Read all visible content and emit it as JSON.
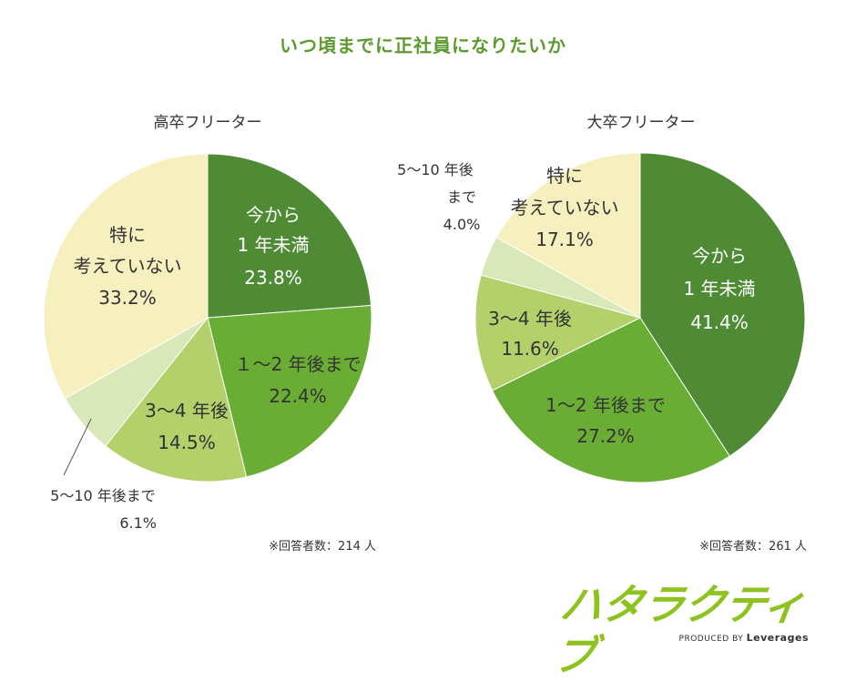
{
  "title": "いつ頃までに正社員になりたいか",
  "chart_data": [
    {
      "type": "pie",
      "title": "高卒フリーター",
      "categories": [
        "今から1年未満",
        "1〜2年後まで",
        "3〜4年後",
        "5〜10年後まで",
        "特に考えていない"
      ],
      "values": [
        23.8,
        22.4,
        14.5,
        6.1,
        33.2
      ],
      "unit": "%",
      "colors": [
        "#4e8b34",
        "#6aad34",
        "#b3d06a",
        "#d9e8b8",
        "#f6f0bf"
      ],
      "labels": [
        [
          "今から",
          "1 年未満",
          "23.8%"
        ],
        [
          "１〜2 年後まで",
          "22.4%"
        ],
        [
          "3〜4 年後",
          "14.5%"
        ],
        [
          "5〜10 年後まで",
          "6.1%"
        ],
        [
          "特に",
          "考えていない",
          "33.2%"
        ]
      ],
      "note": "※回答者数：214 人"
    },
    {
      "type": "pie",
      "title": "大卒フリーター",
      "categories": [
        "今から1年未満",
        "1〜2年後まで",
        "3〜4年後",
        "5〜10年後まで",
        "特に考えていない"
      ],
      "values": [
        41.4,
        27.2,
        11.6,
        4.0,
        17.1
      ],
      "unit": "%",
      "colors": [
        "#4e8b34",
        "#6aad34",
        "#b3d06a",
        "#d9e8b8",
        "#f6f0bf"
      ],
      "labels": [
        [
          "今から",
          "1 年未満",
          "41.4%"
        ],
        [
          "1〜2 年後まで",
          "27.2%"
        ],
        [
          "3〜4 年後",
          "11.6%"
        ],
        [
          "5〜10 年後",
          "まで",
          "4.0%"
        ],
        [
          "特に",
          "考えていない",
          "17.1%"
        ]
      ],
      "note": "※回答者数：261 人"
    }
  ],
  "logo": {
    "word": "ハタラクティブ",
    "sub_prefix": "PRODUCED BY",
    "sub_brand": "Leverages"
  }
}
